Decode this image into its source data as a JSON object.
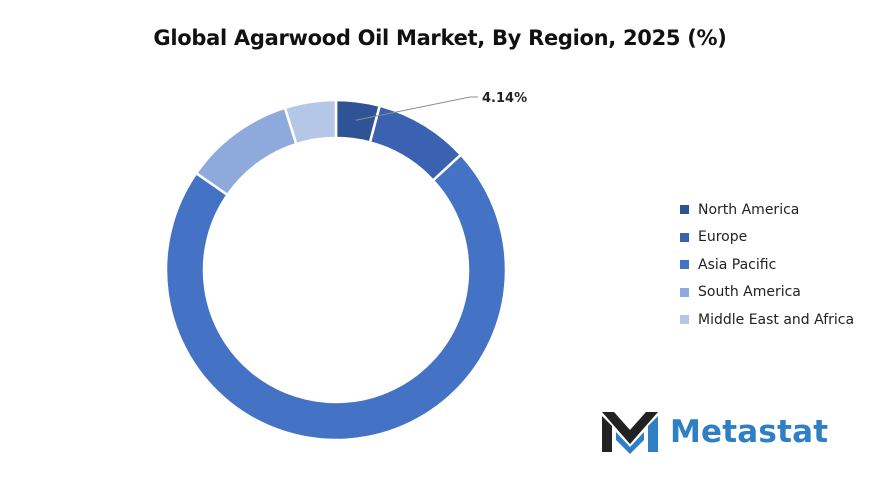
{
  "title": "Global Agarwood Oil Market, By Region, 2025 (%)",
  "chart_data": {
    "type": "pie",
    "variant": "donut",
    "categories": [
      "North America",
      "Europe",
      "Asia Pacific",
      "South America",
      "Middle East and Africa"
    ],
    "values": [
      4.14,
      9.0,
      71.5,
      10.5,
      4.86
    ],
    "colors": [
      "#2f5496",
      "#3b62b1",
      "#4472c4",
      "#8ea9db",
      "#b4c7e7"
    ],
    "annotations": [
      {
        "category": "North America",
        "label": "4.14%"
      }
    ],
    "legend_position": "right"
  },
  "brand": {
    "name": "Metastat",
    "logo_icon": "metastat-m-logo-icon",
    "color": "#2e7fc4"
  }
}
